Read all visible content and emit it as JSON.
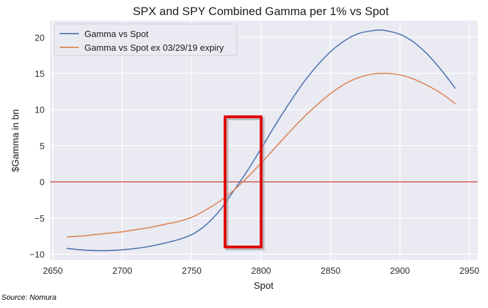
{
  "chart_data": {
    "type": "line",
    "title": "SPX and SPY Combined Gamma per 1% vs Spot",
    "xlabel": "Spot",
    "ylabel": "$Gamma in bn",
    "xlim": [
      2648,
      2956
    ],
    "ylim": [
      -10.8,
      22.3
    ],
    "xticks": [
      2650,
      2700,
      2750,
      2800,
      2850,
      2900,
      2950
    ],
    "yticks": [
      -10,
      -5,
      0,
      5,
      10,
      15,
      20
    ],
    "grid": true,
    "legend_position": "top-left",
    "background_color": "#EAEAF2",
    "zero_line_color": "#C0392B",
    "series": [
      {
        "name": "Gamma vs Spot",
        "color": "#4C72B0",
        "x": [
          2660,
          2670,
          2680,
          2690,
          2700,
          2710,
          2720,
          2730,
          2740,
          2750,
          2760,
          2770,
          2780,
          2790,
          2800,
          2810,
          2820,
          2830,
          2840,
          2850,
          2860,
          2870,
          2880,
          2886,
          2890,
          2900,
          2910,
          2920,
          2930,
          2940
        ],
        "y": [
          -9.2,
          -9.4,
          -9.5,
          -9.5,
          -9.4,
          -9.2,
          -8.9,
          -8.5,
          -8.0,
          -7.3,
          -6.0,
          -4.0,
          -1.3,
          1.5,
          4.6,
          7.8,
          10.8,
          13.6,
          16.0,
          18.0,
          19.5,
          20.5,
          20.9,
          21.0,
          20.9,
          20.4,
          19.3,
          17.6,
          15.4,
          12.9
        ]
      },
      {
        "name": "Gamma vs Spot ex 03/29/19 expiry",
        "color": "#DD8452",
        "x": [
          2660,
          2670,
          2680,
          2690,
          2700,
          2710,
          2720,
          2730,
          2740,
          2750,
          2760,
          2770,
          2780,
          2790,
          2800,
          2810,
          2820,
          2830,
          2840,
          2850,
          2860,
          2870,
          2880,
          2890,
          2900,
          2910,
          2920,
          2930,
          2940
        ],
        "y": [
          -7.6,
          -7.5,
          -7.3,
          -7.1,
          -6.9,
          -6.6,
          -6.3,
          -5.9,
          -5.5,
          -4.9,
          -3.9,
          -2.7,
          -1.2,
          0.6,
          2.6,
          4.7,
          6.8,
          8.8,
          10.6,
          12.2,
          13.5,
          14.4,
          14.9,
          15.0,
          14.8,
          14.2,
          13.3,
          12.2,
          10.8
        ]
      }
    ],
    "annotations": [
      {
        "type": "rectangle",
        "x_range": [
          2774,
          2800
        ],
        "y_range": [
          -9.0,
          9.0
        ],
        "color": "#E00000"
      }
    ]
  },
  "source_note": "Source: Nomura"
}
